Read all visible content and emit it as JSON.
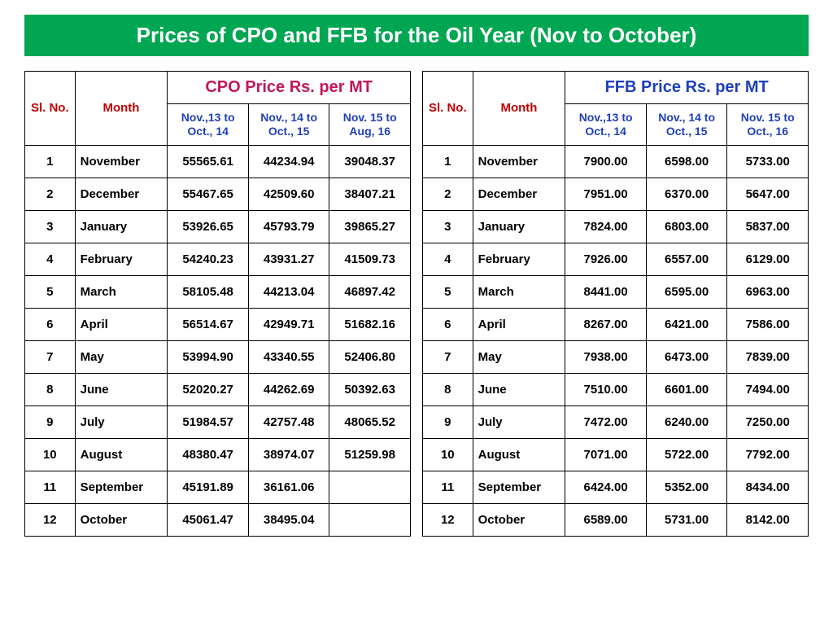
{
  "title": "Prices of CPO and FFB for the Oil Year (Nov to October)",
  "colors": {
    "title_bg": "#00a651",
    "title_text": "#ffffff",
    "header_red": "#c00000",
    "header_magenta": "#c2185b",
    "header_blue": "#1f3fb8",
    "border": "#000000",
    "body_text": "#000000"
  },
  "common_headers": {
    "slno": "Sl. No.",
    "month": "Month"
  },
  "cpo": {
    "main_header": "CPO Price Rs. per MT",
    "periods": [
      "Nov.,13 to Oct., 14",
      "Nov., 14 to Oct., 15",
      "Nov. 15 to Aug, 16"
    ],
    "rows": [
      {
        "sl": "1",
        "month": "November",
        "v": [
          "55565.61",
          "44234.94",
          "39048.37"
        ]
      },
      {
        "sl": "2",
        "month": "December",
        "v": [
          "55467.65",
          "42509.60",
          "38407.21"
        ]
      },
      {
        "sl": "3",
        "month": "January",
        "v": [
          "53926.65",
          "45793.79",
          "39865.27"
        ]
      },
      {
        "sl": "4",
        "month": "February",
        "v": [
          "54240.23",
          "43931.27",
          "41509.73"
        ]
      },
      {
        "sl": "5",
        "month": "March",
        "v": [
          "58105.48",
          "44213.04",
          "46897.42"
        ]
      },
      {
        "sl": "6",
        "month": "April",
        "v": [
          "56514.67",
          "42949.71",
          "51682.16"
        ]
      },
      {
        "sl": "7",
        "month": "May",
        "v": [
          "53994.90",
          "43340.55",
          "52406.80"
        ]
      },
      {
        "sl": "8",
        "month": "June",
        "v": [
          "52020.27",
          "44262.69",
          "50392.63"
        ]
      },
      {
        "sl": "9",
        "month": "July",
        "v": [
          "51984.57",
          "42757.48",
          "48065.52"
        ]
      },
      {
        "sl": "10",
        "month": "August",
        "v": [
          "48380.47",
          "38974.07",
          "51259.98"
        ]
      },
      {
        "sl": "11",
        "month": "September",
        "v": [
          "45191.89",
          "36161.06",
          ""
        ]
      },
      {
        "sl": "12",
        "month": "October",
        "v": [
          "45061.47",
          "38495.04",
          ""
        ]
      }
    ]
  },
  "ffb": {
    "main_header": "FFB Price Rs. per MT",
    "periods": [
      "Nov.,13 to Oct., 14",
      "Nov., 14 to Oct., 15",
      "Nov. 15 to Oct., 16"
    ],
    "rows": [
      {
        "sl": "1",
        "month": "November",
        "v": [
          "7900.00",
          "6598.00",
          "5733.00"
        ]
      },
      {
        "sl": "2",
        "month": "December",
        "v": [
          "7951.00",
          "6370.00",
          "5647.00"
        ]
      },
      {
        "sl": "3",
        "month": "January",
        "v": [
          "7824.00",
          "6803.00",
          "5837.00"
        ]
      },
      {
        "sl": "4",
        "month": "February",
        "v": [
          "7926.00",
          "6557.00",
          "6129.00"
        ]
      },
      {
        "sl": "5",
        "month": "March",
        "v": [
          "8441.00",
          "6595.00",
          "6963.00"
        ]
      },
      {
        "sl": "6",
        "month": "April",
        "v": [
          "8267.00",
          "6421.00",
          "7586.00"
        ]
      },
      {
        "sl": "7",
        "month": "May",
        "v": [
          "7938.00",
          "6473.00",
          "7839.00"
        ]
      },
      {
        "sl": "8",
        "month": "June",
        "v": [
          "7510.00",
          "6601.00",
          "7494.00"
        ]
      },
      {
        "sl": "9",
        "month": "July",
        "v": [
          "7472.00",
          "6240.00",
          "7250.00"
        ]
      },
      {
        "sl": "10",
        "month": "August",
        "v": [
          "7071.00",
          "5722.00",
          "7792.00"
        ]
      },
      {
        "sl": "11",
        "month": "September",
        "v": [
          "6424.00",
          "5352.00",
          "8434.00"
        ]
      },
      {
        "sl": "12",
        "month": "October",
        "v": [
          "6589.00",
          "5731.00",
          "8142.00"
        ]
      }
    ]
  }
}
